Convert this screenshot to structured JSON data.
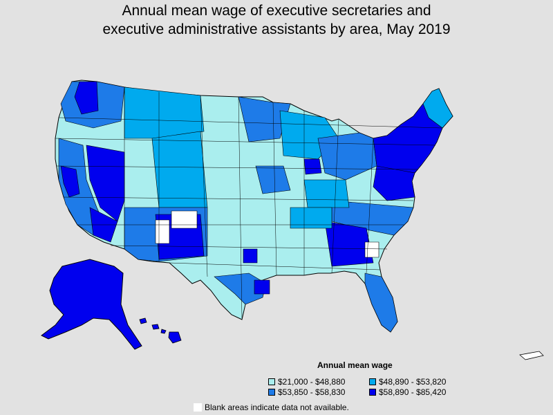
{
  "title": {
    "line1": "Annual mean wage of executive secretaries and",
    "line2": "executive administrative assistants by area, May 2019"
  },
  "legend": {
    "title": "Annual mean wage",
    "items": [
      {
        "label": "$21,000 - $48,880",
        "color": "#aaeeee"
      },
      {
        "label": "$48,890 - $53,820",
        "color": "#00aaee"
      },
      {
        "label": "$53,850 - $58,830",
        "color": "#1e7be8"
      },
      {
        "label": "$58,890 - $85,420",
        "color": "#0000ee"
      }
    ],
    "na_note": "Blank areas indicate data not available.",
    "na_color": "#ffffff"
  },
  "colors": {
    "background": "#e2e2e2",
    "border": "#000000"
  }
}
